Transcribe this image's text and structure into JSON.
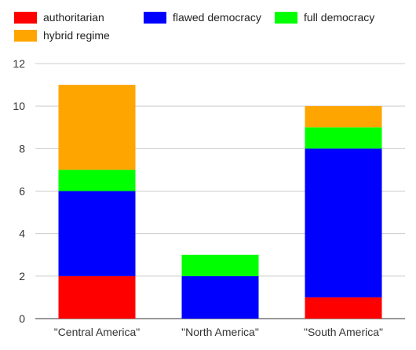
{
  "chart_data": {
    "type": "bar",
    "stacked": true,
    "categories": [
      "\"Central America\"",
      "\"North America\"",
      "\"South America\""
    ],
    "series": [
      {
        "name": "authoritarian",
        "color": "#ff0000",
        "values": [
          2,
          0,
          1
        ]
      },
      {
        "name": "flawed democracy",
        "color": "#0000ff",
        "values": [
          4,
          2,
          7
        ]
      },
      {
        "name": "full democracy",
        "color": "#00ff00",
        "values": [
          1,
          1,
          1
        ]
      },
      {
        "name": "hybrid regime",
        "color": "#ffa500",
        "values": [
          4,
          0,
          1
        ]
      }
    ],
    "yticks": [
      "0",
      "2",
      "4",
      "6",
      "8",
      "10",
      "12"
    ],
    "ylim": [
      0,
      12
    ],
    "title": "",
    "xlabel": "",
    "ylabel": "",
    "grid": true,
    "legend_position": "top"
  }
}
